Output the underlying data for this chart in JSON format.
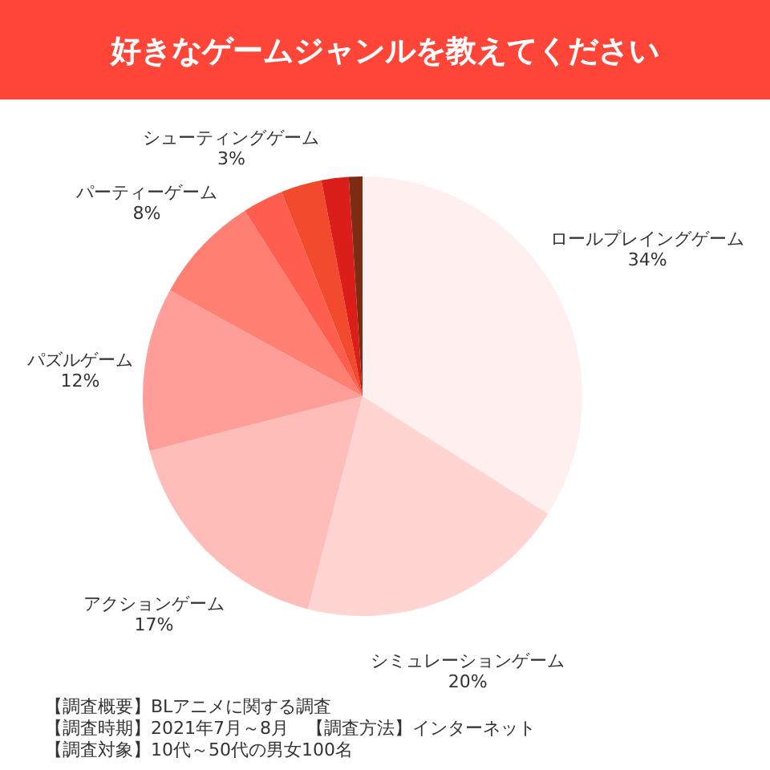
{
  "chart_data": {
    "type": "pie",
    "title": "好きなゲームジャンルを教えてください",
    "categories": [
      "ロールプレイングゲーム",
      "シミュレーションゲーム",
      "アクションゲーム",
      "パズルゲーム",
      "パーティーゲーム",
      "シューティングゲーム",
      null,
      null,
      null
    ],
    "values": [
      34,
      20,
      17,
      12,
      8,
      3,
      3,
      2,
      1
    ],
    "colors": [
      "#fff0f0",
      "#ffd4d1",
      "#ffbdb9",
      "#ff9e98",
      "#ff7f72",
      "#ff5e4e",
      "#f24a2c",
      "#dc1e1a",
      "#7b2c12"
    ],
    "value_labels": [
      "34%",
      "20%",
      "17%",
      "12%",
      "8%",
      "3%",
      null,
      null,
      null
    ],
    "annotations": [
      "【調査概要】BLアニメに関する調査",
      "【調査時期】2021年7月～8月　【調査方法】インターネット",
      "【調査対象】10代～50代の男女100名"
    ]
  }
}
